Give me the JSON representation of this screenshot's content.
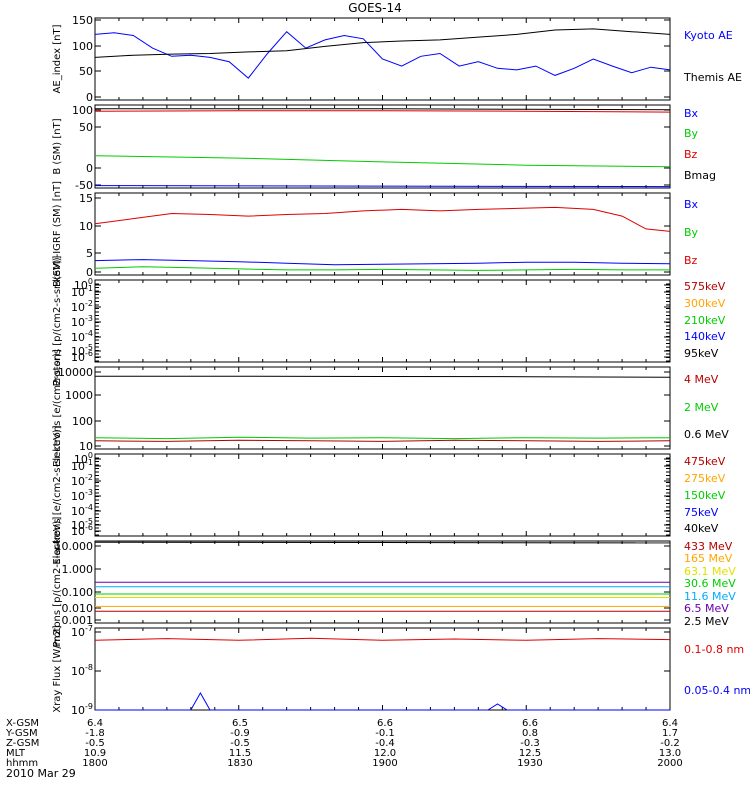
{
  "title": "GOES-14",
  "date_label": "2010 Mar 29",
  "footer": {
    "rows": [
      {
        "label": "X-GSM",
        "values": [
          "6.4",
          "6.5",
          "6.6",
          "6.6",
          "6.4"
        ]
      },
      {
        "label": "Y-GSM",
        "values": [
          "-1.8",
          "-0.9",
          "-0.1",
          "0.8",
          "1.7"
        ]
      },
      {
        "label": "Z-GSM",
        "values": [
          "-0.5",
          "-0.5",
          "-0.4",
          "-0.3",
          "-0.2"
        ]
      },
      {
        "label": "MLT",
        "values": [
          "10.9",
          "11.5",
          "12.0",
          "12.5",
          "13.0"
        ]
      },
      {
        "label": "hhmm",
        "values": [
          "1800",
          "1830",
          "1900",
          "1930",
          "2000"
        ]
      }
    ]
  },
  "colors": {
    "black": "#000000",
    "blue": "#0000ff",
    "red": "#dd0000",
    "green": "#00cc00",
    "orange": "#ffa500",
    "yellow": "#e0e000",
    "cyan": "#00aaff",
    "purple": "#6a00a8",
    "darkred": "#b40000"
  },
  "chart_data": [
    {
      "type": "line",
      "title": "",
      "ylabel": "AE_index [nT]",
      "y_ticks": [
        "150",
        "100",
        "50",
        "0"
      ],
      "ylim": [
        0,
        150
      ],
      "xlim_hhmm": [
        "1800",
        "2000"
      ],
      "series": [
        {
          "name": "Kyoto AE",
          "color": "blue",
          "x": [
            1800,
            1804,
            1808,
            1812,
            1816,
            1820,
            1824,
            1828,
            1832,
            1836,
            1840,
            1844,
            1848,
            1852,
            1856,
            1900,
            1904,
            1908,
            1912,
            1916,
            1920,
            1924,
            1928,
            1932,
            1936,
            1940,
            1944,
            1948,
            1952,
            1956,
            2000
          ],
          "values": [
            120,
            123,
            118,
            95,
            80,
            82,
            78,
            70,
            40,
            85,
            125,
            95,
            110,
            118,
            112,
            75,
            62,
            80,
            85,
            62,
            70,
            58,
            55,
            62,
            45,
            58,
            75,
            62,
            50,
            60,
            55
          ]
        },
        {
          "name": "Themis AE",
          "color": "black",
          "x": [
            1800,
            1808,
            1816,
            1824,
            1832,
            1840,
            1848,
            1856,
            1904,
            1912,
            1920,
            1928,
            1936,
            1944,
            1952,
            2000
          ],
          "values": [
            78,
            82,
            84,
            85,
            88,
            90,
            98,
            105,
            108,
            110,
            115,
            120,
            128,
            130,
            125,
            120
          ]
        }
      ]
    },
    {
      "type": "line",
      "ylabel": "B (SM) [nT]",
      "y_ticks": [
        "100",
        "50",
        "0",
        "-50"
      ],
      "ylim": [
        -55,
        120
      ],
      "series": [
        {
          "name": "Bx",
          "color": "blue",
          "x": [
            1800,
            2000
          ],
          "values": [
            -50,
            -52
          ]
        },
        {
          "name": "By",
          "color": "green",
          "x": [
            1800,
            1830,
            1900,
            1930,
            2000
          ],
          "values": [
            13,
            8,
            0,
            -7,
            -10
          ]
        },
        {
          "name": "Bz",
          "color": "red",
          "x": [
            1800,
            1830,
            1900,
            1930,
            2000
          ],
          "values": [
            107,
            108,
            108,
            107,
            105
          ]
        },
        {
          "name": "Bmag",
          "color": "black",
          "x": [
            1800,
            1830,
            1900,
            1930,
            2000
          ],
          "values": [
            112,
            112,
            112,
            111,
            110
          ]
        }
      ]
    },
    {
      "type": "line",
      "ylabel": "B(SM)-IGRF (SM) [nT]",
      "y_ticks": [
        "15",
        "10",
        "5",
        "0"
      ],
      "ylim": [
        0,
        16
      ],
      "series": [
        {
          "name": "Bx",
          "color": "blue",
          "x": [
            1800,
            1810,
            1820,
            1830,
            1840,
            1850,
            1900,
            1910,
            1920,
            1930,
            1940,
            1950,
            2000
          ],
          "values": [
            2.8,
            3.0,
            2.8,
            2.6,
            2.3,
            2.0,
            2.1,
            2.2,
            2.3,
            2.5,
            2.5,
            2.3,
            2.2
          ]
        },
        {
          "name": "By",
          "color": "green",
          "x": [
            1800,
            1810,
            1820,
            1830,
            1840,
            1850,
            1900,
            1910,
            1920,
            1930,
            1940,
            1950,
            2000
          ],
          "values": [
            1.3,
            1.6,
            1.4,
            1.2,
            1.0,
            1.0,
            1.1,
            1.0,
            0.9,
            1.0,
            1.1,
            1.0,
            1.0
          ]
        },
        {
          "name": "Bz",
          "color": "red",
          "x": [
            1800,
            1808,
            1816,
            1824,
            1832,
            1840,
            1848,
            1856,
            1904,
            1912,
            1920,
            1928,
            1936,
            1944,
            1950,
            1955,
            2000
          ],
          "values": [
            10.0,
            11.0,
            12.0,
            11.8,
            11.5,
            11.8,
            12.0,
            12.5,
            12.8,
            12.5,
            12.8,
            13.0,
            13.2,
            12.8,
            11.5,
            9.0,
            8.5
          ]
        }
      ]
    },
    {
      "type": "line",
      "scale": "log",
      "ylabel": "Protons [p/(cm2-s-sr-keV)]",
      "y_ticks": [
        "10^0",
        "10^-1",
        "10^-2",
        "10^-3",
        "10^-4",
        "10^-5",
        "10^-6"
      ],
      "series": [
        {
          "name": "575keV",
          "color": "darkred",
          "values": []
        },
        {
          "name": "300keV",
          "color": "orange",
          "values": []
        },
        {
          "name": "210keV",
          "color": "green",
          "values": []
        },
        {
          "name": "140keV",
          "color": "blue",
          "values": []
        },
        {
          "name": "95keV",
          "color": "black",
          "values": []
        }
      ]
    },
    {
      "type": "line",
      "scale": "log",
      "ylabel": "Electrons [e/(cm2-s-sr)]",
      "y_ticks": [
        "10000",
        "1000",
        "100",
        "10"
      ],
      "ylim": [
        10,
        10000
      ],
      "series": [
        {
          "name": "4 MeV",
          "color": "darkred",
          "x": [
            1800,
            1815,
            1830,
            1845,
            1900,
            1915,
            1930,
            1945,
            2000
          ],
          "values": [
            20,
            19,
            21,
            20,
            19,
            21,
            20,
            19,
            20
          ]
        },
        {
          "name": "2 MeV",
          "color": "green",
          "x": [
            1800,
            1815,
            1830,
            1845,
            1900,
            1915,
            1930,
            1945,
            2000
          ],
          "values": [
            26,
            24,
            27,
            25,
            26,
            24,
            26,
            25,
            26
          ]
        },
        {
          "name": "0.6 MeV",
          "color": "black",
          "x": [
            1800,
            1830,
            1900,
            1930,
            1945,
            2000
          ],
          "values": [
            4600,
            4600,
            4500,
            4400,
            4300,
            4200
          ]
        }
      ]
    },
    {
      "type": "line",
      "scale": "log",
      "ylabel": "Electrons [e/(cm2-s-sr-keV)]",
      "y_ticks": [
        "10^0",
        "10^-1",
        "10^-2",
        "10^-3",
        "10^-4",
        "10^-5",
        "10^-6"
      ],
      "series": [
        {
          "name": "475keV",
          "color": "darkred",
          "values": []
        },
        {
          "name": "275keV",
          "color": "orange",
          "values": []
        },
        {
          "name": "150keV",
          "color": "green",
          "values": []
        },
        {
          "name": "75keV",
          "color": "blue",
          "values": []
        },
        {
          "name": "40keV",
          "color": "black",
          "values": []
        }
      ]
    },
    {
      "type": "line",
      "scale": "log",
      "ylabel": "Protons [p/(cm2-s-sr-keV)]",
      "y_ticks": [
        "10.000",
        "1.000",
        "0.100",
        "0.010",
        "0.001"
      ],
      "ylim": [
        0.001,
        15
      ],
      "series": [
        {
          "name": "433 MeV",
          "color": "darkred",
          "x": [
            1800,
            2000
          ],
          "values": [
            0.004,
            0.004
          ]
        },
        {
          "name": "165 MeV",
          "color": "orange",
          "x": [
            1800,
            2000
          ],
          "values": [
            0.007,
            0.007
          ]
        },
        {
          "name": "63.1 MeV",
          "color": "yellow",
          "x": [
            1800,
            2000
          ],
          "values": [
            0.02,
            0.02
          ]
        },
        {
          "name": "30.6 MeV",
          "color": "green",
          "x": [
            1800,
            2000
          ],
          "values": [
            0.03,
            0.03
          ]
        },
        {
          "name": "11.6 MeV",
          "color": "cyan",
          "x": [
            1800,
            2000
          ],
          "values": [
            0.07,
            0.07
          ]
        },
        {
          "name": "6.5 MeV",
          "color": "purple",
          "x": [
            1800,
            2000
          ],
          "values": [
            0.12,
            0.12
          ]
        },
        {
          "name": "2.5 MeV",
          "color": "black",
          "x": [
            1800,
            2000
          ],
          "values": [
            13,
            12
          ]
        }
      ]
    },
    {
      "type": "line",
      "scale": "log",
      "ylabel": "Xray Flux [W/m2]",
      "y_ticks": [
        "10^-7",
        "10^-8",
        "10^-9"
      ],
      "ylim": [
        1e-09,
        1e-07
      ],
      "series": [
        {
          "name": "0.1-0.8 nm",
          "color": "red",
          "x": [
            1800,
            1815,
            1830,
            1845,
            1900,
            1915,
            1930,
            1945,
            2000
          ],
          "values": [
            5e-08,
            5.5e-08,
            5e-08,
            5.6e-08,
            5e-08,
            5.4e-08,
            5e-08,
            5.5e-08,
            5.2e-08
          ]
        },
        {
          "name": "0.05-0.4 nm",
          "color": "blue",
          "x": [
            1800,
            1815,
            1820,
            1822,
            1824,
            1840,
            1900,
            1922,
            1924,
            1926,
            1945,
            2000
          ],
          "values": [
            1e-09,
            1e-09,
            1e-09,
            2.6e-09,
            1e-09,
            1e-09,
            1e-09,
            1e-09,
            1.4e-09,
            1e-09,
            1e-09,
            1e-09
          ]
        }
      ]
    }
  ]
}
